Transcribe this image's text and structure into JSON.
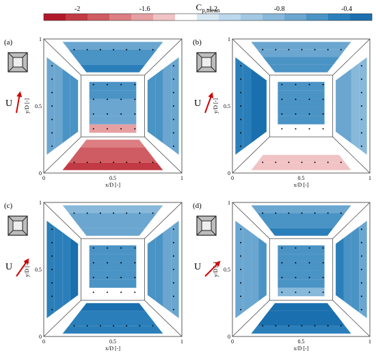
{
  "colorbar": {
    "title_main": "C",
    "title_sub": "p,mean",
    "ticks": [
      "-2",
      "-1.6",
      "-1.2",
      "-0.8",
      "-0.4"
    ],
    "tick_values": [
      -2,
      -1.6,
      -1.2,
      -0.8,
      -0.4
    ],
    "range": [
      -2.2,
      -0.25
    ],
    "colors": [
      "#b2182b",
      "#c23a44",
      "#cf5c62",
      "#dc7e82",
      "#e7a0a2",
      "#f1c3c4",
      "#ffffff",
      "#d6e8f4",
      "#bcd8ec",
      "#a2c8e3",
      "#88b8da",
      "#6aa6d0",
      "#4a93c5",
      "#2a7fba",
      "#1a6fae"
    ]
  },
  "panel_labels": [
    "(a)",
    "(b)",
    "(c)",
    "(d)"
  ],
  "axes": {
    "xlabel": "x/D [-]",
    "ylabel": "y/D [-]",
    "x_ticks": [
      "0",
      "0.5",
      "1"
    ],
    "y_ticks": [
      "0",
      "0.5",
      "1"
    ]
  },
  "wind_label": "U",
  "chart_data": [
    {
      "type": "heatmap",
      "panel": "(a)",
      "wind_angle_deg": 10,
      "cp_mean": {
        "top": -0.55,
        "bottom": -1.85,
        "left": -0.6,
        "right": -0.6,
        "roof": -0.65,
        "roof_lower_edge": -1.6
      }
    },
    {
      "type": "heatmap",
      "panel": "(b)",
      "wind_angle_deg": 20,
      "cp_mean": {
        "top": -0.6,
        "bottom": -1.4,
        "left": -0.35,
        "right": -0.75,
        "roof": -0.6,
        "roof_lower_edge": -1.4
      }
    },
    {
      "type": "heatmap",
      "panel": "(c)",
      "wind_angle_deg": 35,
      "cp_mean": {
        "top": -0.7,
        "bottom": -0.4,
        "left": -0.4,
        "right": -0.6,
        "roof": -0.55,
        "roof_lower_edge": -1.3
      }
    },
    {
      "type": "heatmap",
      "panel": "(d)",
      "wind_angle_deg": 45,
      "cp_mean": {
        "top": -0.55,
        "bottom": -0.3,
        "left": -0.65,
        "right": -0.55,
        "roof": -0.55,
        "roof_lower_edge": -0.85
      }
    }
  ]
}
